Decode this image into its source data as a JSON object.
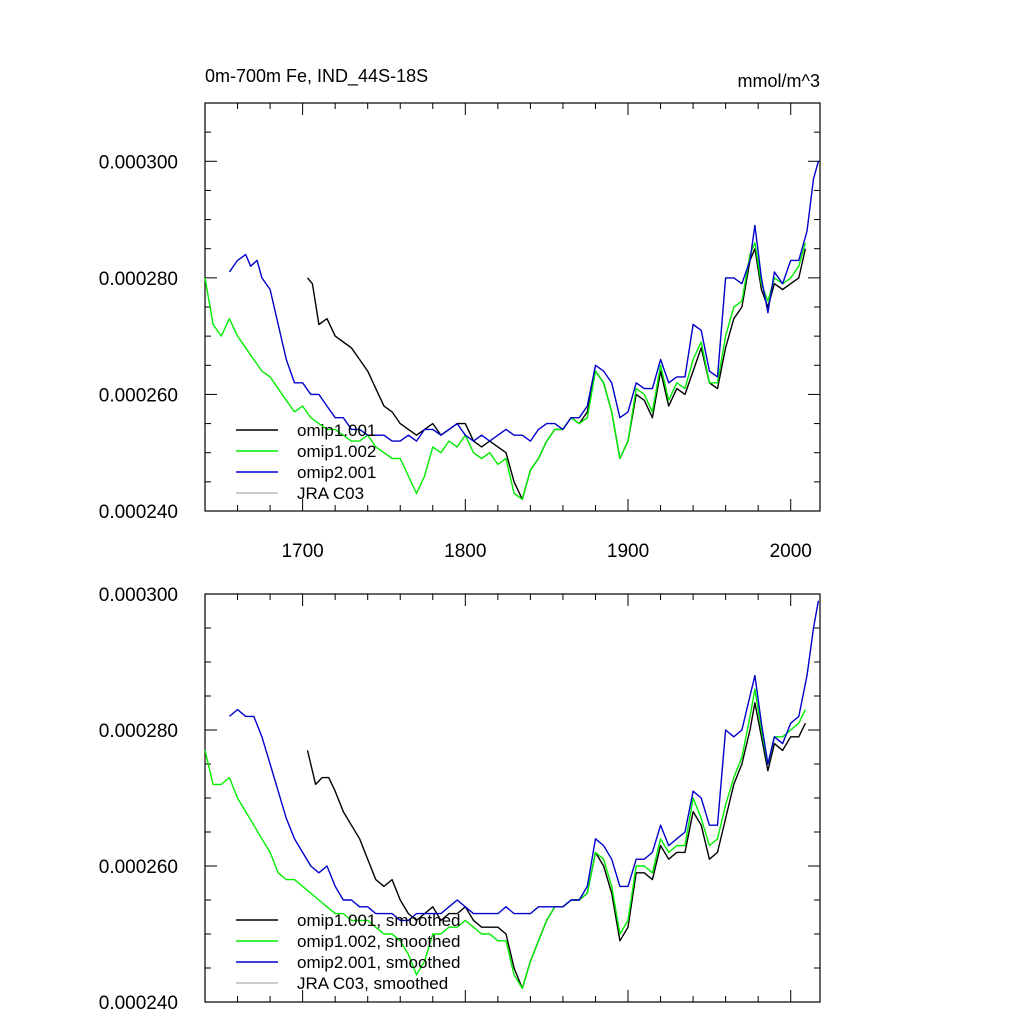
{
  "chart_data": [
    {
      "type": "line",
      "title": "0m-700m Fe, IND_44S-18S",
      "units": "mmol/m^3",
      "xlim": [
        1640,
        2018
      ],
      "ylim": [
        0.00024,
        0.00031
      ],
      "xticks": [
        1700,
        1800,
        1900,
        2000
      ],
      "xtick_labels": [
        "1700",
        "1800",
        "1900",
        "2000"
      ],
      "yticks": [
        0.00024,
        0.00026,
        0.00028,
        0.0003
      ],
      "ytick_labels": [
        "0.000240",
        "0.000260",
        "0.000280",
        "0.000300"
      ],
      "legend_position": "bottom-left",
      "series": [
        {
          "name": "omip1.001",
          "color": "#000000",
          "x": [
            1703,
            1706,
            1710,
            1715,
            1720,
            1725,
            1730,
            1735,
            1740,
            1745,
            1750,
            1755,
            1760,
            1765,
            1770,
            1775,
            1780,
            1785,
            1790,
            1795,
            1800,
            1805,
            1810,
            1815,
            1820,
            1825,
            1830,
            1835,
            1840,
            1845,
            1850,
            1855,
            1860,
            1865,
            1870,
            1875,
            1880,
            1885,
            1890,
            1895,
            1900,
            1905,
            1910,
            1915,
            1920,
            1925,
            1930,
            1935,
            1940,
            1945,
            1950,
            1955,
            1960,
            1965,
            1970,
            1975,
            1978,
            1982,
            1986,
            1990,
            1995,
            2000,
            2005,
            2009
          ],
          "y": [
            0.00028,
            0.000279,
            0.000272,
            0.000273,
            0.00027,
            0.000269,
            0.000268,
            0.000266,
            0.000264,
            0.000261,
            0.000258,
            0.000257,
            0.000255,
            0.000254,
            0.000253,
            0.000254,
            0.000255,
            0.000253,
            0.000254,
            0.000255,
            0.000255,
            0.000252,
            0.000251,
            0.000252,
            0.000251,
            0.00025,
            0.000245,
            0.000242,
            0.000247,
            0.000249,
            0.000252,
            0.000254,
            0.000254,
            0.000256,
            0.000255,
            0.000257,
            0.000264,
            0.000262,
            0.000257,
            0.000249,
            0.000252,
            0.00026,
            0.000259,
            0.000256,
            0.000264,
            0.000258,
            0.000261,
            0.00026,
            0.000264,
            0.000268,
            0.000262,
            0.000261,
            0.000268,
            0.000273,
            0.000275,
            0.000283,
            0.000285,
            0.000278,
            0.000275,
            0.000279,
            0.000278,
            0.000279,
            0.00028,
            0.000285
          ]
        },
        {
          "name": "omip1.002",
          "color": "#00ee00",
          "x": [
            1640,
            1645,
            1650,
            1655,
            1660,
            1665,
            1670,
            1675,
            1680,
            1685,
            1690,
            1695,
            1700,
            1705,
            1710,
            1715,
            1720,
            1725,
            1730,
            1735,
            1740,
            1745,
            1750,
            1755,
            1760,
            1765,
            1770,
            1775,
            1780,
            1785,
            1790,
            1795,
            1800,
            1805,
            1810,
            1815,
            1820,
            1825,
            1830,
            1835,
            1840,
            1845,
            1850,
            1855,
            1860,
            1865,
            1870,
            1875,
            1880,
            1885,
            1890,
            1895,
            1900,
            1905,
            1910,
            1915,
            1920,
            1925,
            1930,
            1935,
            1940,
            1945,
            1950,
            1955,
            1960,
            1965,
            1970,
            1975,
            1978,
            1982,
            1986,
            1990,
            1995,
            2000,
            2005,
            2009
          ],
          "y": [
            0.00028,
            0.000272,
            0.00027,
            0.000273,
            0.00027,
            0.000268,
            0.000266,
            0.000264,
            0.000263,
            0.000261,
            0.000259,
            0.000257,
            0.000258,
            0.000256,
            0.000255,
            0.000254,
            0.000254,
            0.000253,
            0.000252,
            0.000252,
            0.000253,
            0.000251,
            0.00025,
            0.000249,
            0.000249,
            0.000246,
            0.000243,
            0.000246,
            0.000251,
            0.00025,
            0.000252,
            0.000251,
            0.000253,
            0.00025,
            0.000249,
            0.00025,
            0.000248,
            0.000249,
            0.000243,
            0.000242,
            0.000247,
            0.000249,
            0.000252,
            0.000254,
            0.000254,
            0.000256,
            0.000255,
            0.000256,
            0.000264,
            0.000262,
            0.000257,
            0.000249,
            0.000252,
            0.000261,
            0.00026,
            0.000257,
            0.000265,
            0.000259,
            0.000262,
            0.000261,
            0.000266,
            0.000269,
            0.000262,
            0.000262,
            0.00027,
            0.000275,
            0.000276,
            0.000284,
            0.000286,
            0.000279,
            0.000276,
            0.00028,
            0.000279,
            0.00028,
            0.000282,
            0.000286
          ]
        },
        {
          "name": "omip2.001",
          "color": "#0000cc",
          "x": [
            1655,
            1660,
            1665,
            1668,
            1672,
            1675,
            1680,
            1685,
            1690,
            1695,
            1700,
            1705,
            1710,
            1715,
            1720,
            1725,
            1730,
            1735,
            1740,
            1745,
            1750,
            1755,
            1760,
            1765,
            1770,
            1775,
            1780,
            1785,
            1790,
            1795,
            1800,
            1805,
            1810,
            1815,
            1820,
            1825,
            1830,
            1835,
            1840,
            1845,
            1850,
            1855,
            1860,
            1865,
            1870,
            1875,
            1880,
            1885,
            1890,
            1895,
            1900,
            1905,
            1910,
            1915,
            1920,
            1925,
            1930,
            1935,
            1940,
            1945,
            1950,
            1955,
            1960,
            1965,
            1970,
            1975,
            1978,
            1982,
            1986,
            1990,
            1995,
            2000,
            2005,
            2010,
            2014,
            2017
          ],
          "y": [
            0.000281,
            0.000283,
            0.000284,
            0.000282,
            0.000283,
            0.00028,
            0.000278,
            0.000272,
            0.000266,
            0.000262,
            0.000262,
            0.00026,
            0.00026,
            0.000258,
            0.000256,
            0.000256,
            0.000254,
            0.000254,
            0.000253,
            0.000253,
            0.000253,
            0.000252,
            0.000252,
            0.000253,
            0.000252,
            0.000254,
            0.000254,
            0.000253,
            0.000254,
            0.000255,
            0.000253,
            0.000252,
            0.000253,
            0.000252,
            0.000253,
            0.000254,
            0.000253,
            0.000253,
            0.000252,
            0.000254,
            0.000255,
            0.000255,
            0.000254,
            0.000256,
            0.000256,
            0.000258,
            0.000265,
            0.000264,
            0.000262,
            0.000256,
            0.000257,
            0.000262,
            0.000261,
            0.000261,
            0.000266,
            0.000262,
            0.000263,
            0.000263,
            0.000272,
            0.000271,
            0.000264,
            0.000263,
            0.00028,
            0.00028,
            0.000279,
            0.000283,
            0.000289,
            0.00028,
            0.000274,
            0.000281,
            0.000279,
            0.000283,
            0.000283,
            0.000288,
            0.000297,
            0.0003
          ]
        },
        {
          "name": "JRA C03",
          "color": "#bbbbbb",
          "x": [],
          "y": []
        }
      ]
    },
    {
      "type": "line",
      "xlim": [
        1640,
        2018
      ],
      "ylim": [
        0.00024,
        0.0003
      ],
      "yticks": [
        0.00024,
        0.00026,
        0.00028,
        0.0003
      ],
      "ytick_labels": [
        "0.000240",
        "0.000260",
        "0.000280",
        "0.000300"
      ],
      "legend_position": "bottom-left",
      "series": [
        {
          "name": "omip1.001, smoothed",
          "color": "#000000",
          "x": [
            1703,
            1708,
            1712,
            1716,
            1720,
            1725,
            1730,
            1735,
            1740,
            1745,
            1750,
            1755,
            1760,
            1765,
            1770,
            1775,
            1780,
            1785,
            1790,
            1795,
            1800,
            1805,
            1810,
            1815,
            1820,
            1825,
            1830,
            1835,
            1840,
            1845,
            1850,
            1855,
            1860,
            1865,
            1870,
            1875,
            1880,
            1885,
            1890,
            1895,
            1900,
            1905,
            1910,
            1915,
            1920,
            1925,
            1930,
            1935,
            1940,
            1945,
            1950,
            1955,
            1960,
            1965,
            1970,
            1975,
            1978,
            1982,
            1986,
            1990,
            1995,
            2000,
            2005,
            2009
          ],
          "y": [
            0.000277,
            0.000272,
            0.000273,
            0.000273,
            0.000271,
            0.000268,
            0.000266,
            0.000264,
            0.000261,
            0.000258,
            0.000257,
            0.000258,
            0.000255,
            0.000253,
            0.000252,
            0.000253,
            0.000254,
            0.000252,
            0.000253,
            0.000253,
            0.000254,
            0.000252,
            0.000251,
            0.000251,
            0.000251,
            0.00025,
            0.000245,
            0.000242,
            0.000246,
            0.000249,
            0.000252,
            0.000254,
            0.000254,
            0.000255,
            0.000255,
            0.000256,
            0.000262,
            0.00026,
            0.000256,
            0.000249,
            0.000251,
            0.000259,
            0.000259,
            0.000258,
            0.000263,
            0.000261,
            0.000262,
            0.000262,
            0.000268,
            0.000266,
            0.000261,
            0.000262,
            0.000267,
            0.000272,
            0.000275,
            0.00028,
            0.000284,
            0.000279,
            0.000274,
            0.000278,
            0.000277,
            0.000279,
            0.000279,
            0.000281
          ]
        },
        {
          "name": "omip1.002, smoothed",
          "color": "#00ee00",
          "x": [
            1640,
            1645,
            1650,
            1655,
            1660,
            1665,
            1670,
            1675,
            1680,
            1685,
            1690,
            1695,
            1700,
            1705,
            1710,
            1715,
            1720,
            1725,
            1730,
            1735,
            1740,
            1745,
            1750,
            1755,
            1760,
            1765,
            1770,
            1775,
            1780,
            1785,
            1790,
            1795,
            1800,
            1805,
            1810,
            1815,
            1820,
            1825,
            1830,
            1835,
            1840,
            1845,
            1850,
            1855,
            1860,
            1865,
            1870,
            1875,
            1880,
            1885,
            1890,
            1895,
            1900,
            1905,
            1910,
            1915,
            1920,
            1925,
            1930,
            1935,
            1940,
            1945,
            1950,
            1955,
            1960,
            1965,
            1970,
            1975,
            1978,
            1982,
            1986,
            1990,
            1995,
            2000,
            2005,
            2009
          ],
          "y": [
            0.000277,
            0.000272,
            0.000272,
            0.000273,
            0.00027,
            0.000268,
            0.000266,
            0.000264,
            0.000262,
            0.000259,
            0.000258,
            0.000258,
            0.000257,
            0.000256,
            0.000255,
            0.000254,
            0.000253,
            0.000253,
            0.000252,
            0.000252,
            0.000252,
            0.000251,
            0.00025,
            0.00025,
            0.000249,
            0.000247,
            0.000244,
            0.000246,
            0.00025,
            0.00025,
            0.000251,
            0.000251,
            0.000252,
            0.000251,
            0.00025,
            0.00025,
            0.000249,
            0.000249,
            0.000244,
            0.000242,
            0.000246,
            0.000249,
            0.000252,
            0.000254,
            0.000254,
            0.000255,
            0.000255,
            0.000256,
            0.000262,
            0.000261,
            0.000257,
            0.00025,
            0.000252,
            0.00026,
            0.00026,
            0.000259,
            0.000264,
            0.000262,
            0.000263,
            0.000263,
            0.00027,
            0.000267,
            0.000263,
            0.000264,
            0.000269,
            0.000273,
            0.000276,
            0.000282,
            0.000286,
            0.00028,
            0.000275,
            0.000279,
            0.000279,
            0.00028,
            0.000281,
            0.000283
          ]
        },
        {
          "name": "omip2.001, smoothed",
          "color": "#0000cc",
          "x": [
            1655,
            1660,
            1665,
            1670,
            1675,
            1680,
            1685,
            1690,
            1695,
            1700,
            1705,
            1710,
            1715,
            1720,
            1725,
            1730,
            1735,
            1740,
            1745,
            1750,
            1755,
            1760,
            1765,
            1770,
            1775,
            1780,
            1785,
            1790,
            1795,
            1800,
            1805,
            1810,
            1815,
            1820,
            1825,
            1830,
            1835,
            1840,
            1845,
            1850,
            1855,
            1860,
            1865,
            1870,
            1875,
            1880,
            1885,
            1890,
            1895,
            1900,
            1905,
            1910,
            1915,
            1920,
            1925,
            1930,
            1935,
            1940,
            1945,
            1950,
            1955,
            1960,
            1965,
            1970,
            1975,
            1978,
            1982,
            1986,
            1990,
            1995,
            2000,
            2005,
            2010,
            2014,
            2017
          ],
          "y": [
            0.000282,
            0.000283,
            0.000282,
            0.000282,
            0.000279,
            0.000275,
            0.000271,
            0.000267,
            0.000264,
            0.000262,
            0.00026,
            0.000259,
            0.00026,
            0.000257,
            0.000255,
            0.000255,
            0.000254,
            0.000254,
            0.000253,
            0.000253,
            0.000253,
            0.000252,
            0.000252,
            0.000253,
            0.000253,
            0.000253,
            0.000253,
            0.000254,
            0.000255,
            0.000254,
            0.000253,
            0.000253,
            0.000253,
            0.000253,
            0.000254,
            0.000253,
            0.000253,
            0.000253,
            0.000254,
            0.000254,
            0.000254,
            0.000254,
            0.000255,
            0.000255,
            0.000257,
            0.000264,
            0.000263,
            0.000261,
            0.000257,
            0.000257,
            0.000261,
            0.000261,
            0.000262,
            0.000266,
            0.000263,
            0.000264,
            0.000265,
            0.000271,
            0.00027,
            0.000266,
            0.000266,
            0.00028,
            0.000279,
            0.00028,
            0.000285,
            0.000288,
            0.000281,
            0.000275,
            0.000279,
            0.000278,
            0.000281,
            0.000282,
            0.000288,
            0.000295,
            0.000299
          ]
        },
        {
          "name": "JRA C03, smoothed",
          "color": "#bbbbbb",
          "x": [],
          "y": []
        }
      ]
    }
  ]
}
